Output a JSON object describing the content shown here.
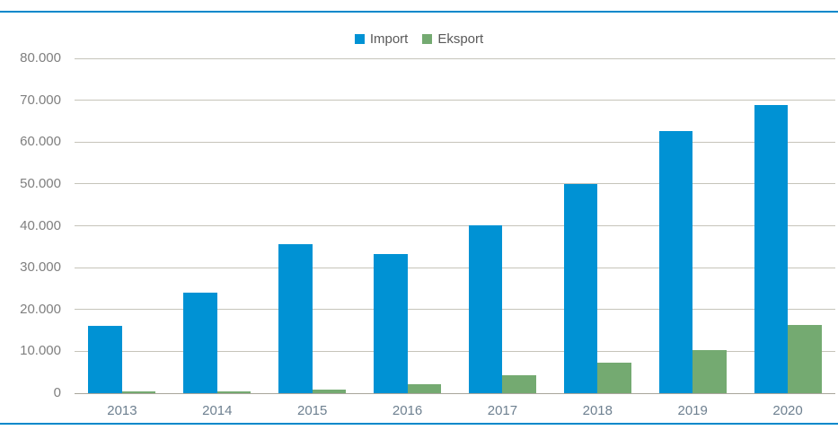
{
  "chart_data": {
    "type": "bar",
    "categories": [
      "2013",
      "2014",
      "2015",
      "2016",
      "2017",
      "2018",
      "2019",
      "2020"
    ],
    "series": [
      {
        "name": "Import",
        "color": "#0092d4",
        "values": [
          16000,
          24000,
          35700,
          33300,
          40100,
          50000,
          62600,
          68800
        ]
      },
      {
        "name": "Eksport",
        "color": "#74aa71",
        "values": [
          400,
          450,
          800,
          2100,
          4200,
          7300,
          10400,
          16300
        ]
      }
    ],
    "title": "",
    "xlabel": "",
    "ylabel": "",
    "ylim": [
      0,
      80000
    ],
    "ytick_interval": 10000,
    "ytick_labels": [
      "0",
      "10.000",
      "20.000",
      "30.000",
      "40.000",
      "50.000",
      "60.000",
      "70.000",
      "80.000"
    ],
    "grid": true,
    "legend_position": "top-center"
  },
  "colors": {
    "accent_rule": "#0088cb",
    "gridline": "#c6c4ba",
    "zero_axis": "#a9a69c",
    "y_label_text": "#7f7f7f",
    "x_label_text": "#6e8090",
    "legend_text": "#595959"
  }
}
